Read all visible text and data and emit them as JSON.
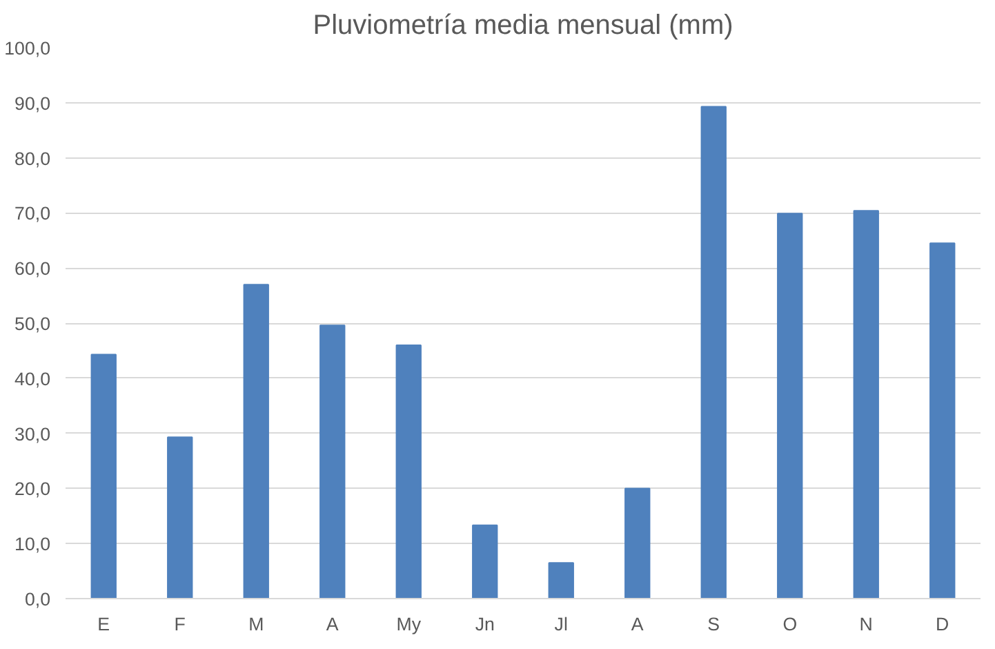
{
  "chart_data": {
    "type": "bar",
    "title": "Pluviometría media mensual (mm)",
    "categories": [
      "E",
      "F",
      "M",
      "A",
      "My",
      "Jn",
      "Jl",
      "A",
      "S",
      "O",
      "N",
      "D"
    ],
    "values": [
      44.3,
      29.3,
      57.0,
      49.6,
      46.0,
      13.3,
      6.5,
      20.0,
      89.3,
      69.9,
      70.4,
      64.5
    ],
    "color": "#4f81bd",
    "ylim": [
      0,
      100
    ],
    "yticks": [
      {
        "value": 0,
        "label": "0,0"
      },
      {
        "value": 10,
        "label": "10,0"
      },
      {
        "value": 20,
        "label": "20,0"
      },
      {
        "value": 30,
        "label": "30,0"
      },
      {
        "value": 40,
        "label": "40,0"
      },
      {
        "value": 50,
        "label": "50,0"
      },
      {
        "value": 60,
        "label": "60,0"
      },
      {
        "value": 70,
        "label": "70,0"
      },
      {
        "value": 80,
        "label": "80,0"
      },
      {
        "value": 90,
        "label": "90,0"
      },
      {
        "value": 100,
        "label": "100,0"
      }
    ],
    "grid": "y"
  }
}
